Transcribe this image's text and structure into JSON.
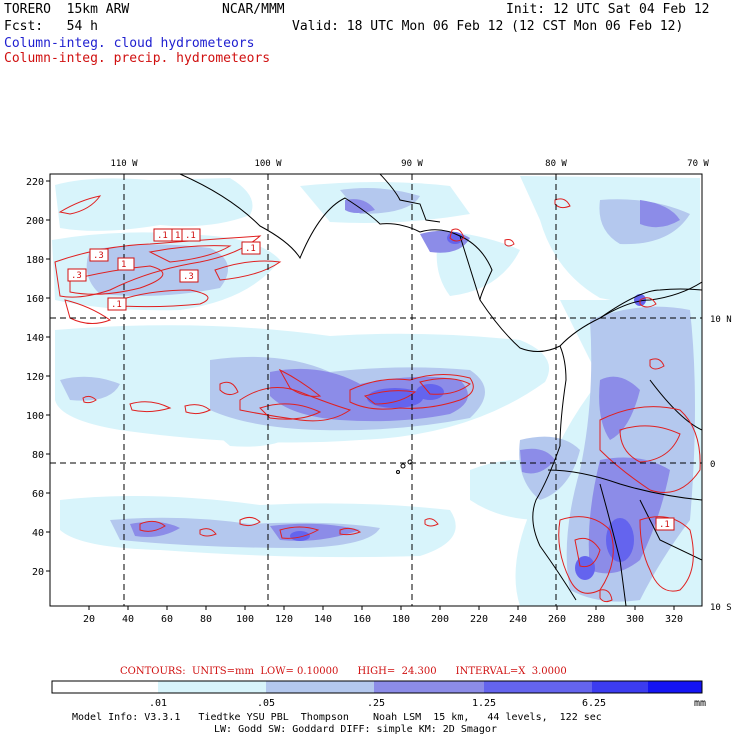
{
  "header": {
    "model": "TORERO",
    "resolution": "15km ARW",
    "org": "NCAR/MMM",
    "init": "Init: 12 UTC Sat 04 Feb 12",
    "fcst_label": "Fcst:",
    "fcst_value": "54 h",
    "valid": "Valid: 18 UTC Mon 06 Feb 12 (12 CST Mon 06 Feb 12)",
    "field1": "Column-integ. cloud hydrometeors",
    "field2": "Column-integ. precip. hydrometeors"
  },
  "map": {
    "lon_labels": [
      "110 W",
      "100 W",
      "90 W",
      "80 W",
      "70 W"
    ],
    "lat_labels": [
      "10 N",
      "0",
      "10 S"
    ],
    "y_ticks": [
      "220",
      "200",
      "180",
      "160",
      "140",
      "120",
      "100",
      "80",
      "60",
      "40",
      "20"
    ],
    "x_ticks": [
      "20",
      "40",
      "60",
      "80",
      "100",
      "120",
      "140",
      "160",
      "180",
      "200",
      "220",
      "240",
      "260",
      "280",
      "300",
      "320"
    ],
    "contour_labels": [
      ".1",
      "1",
      ".1",
      ".1",
      ".3",
      "1",
      ".3",
      ".3",
      ".1",
      ".1"
    ],
    "colors": {
      "light_cyan": "#d8f4fb",
      "light_blue": "#b4c8ee",
      "mid_blue": "#8c8ce8",
      "blue": "#6464ee",
      "contour": "#e02020"
    }
  },
  "contour_info": {
    "units": "CONTOURS:  UNITS=mm  LOW= 0.10000",
    "high": "HIGH=  24.300",
    "interval": "INTERVAL=X  3.0000"
  },
  "colorbar": {
    "ticks": [
      ".01",
      ".05",
      ".25",
      "1.25",
      "6.25"
    ],
    "unit": "mm",
    "colors": [
      "#ffffff",
      "#d8f4fb",
      "#b4c8ee",
      "#8c8ce8",
      "#6464ee",
      "#3c3cf0",
      "#1414f4"
    ]
  },
  "model_info": {
    "line1": "Model Info: V3.3.1   Tiedtke YSU PBL  Thompson    Noah LSM  15 km,   44 levels,  122 sec",
    "line2": "LW: Godd SW: Goddard DIFF: simple KM: 2D Smagor"
  }
}
